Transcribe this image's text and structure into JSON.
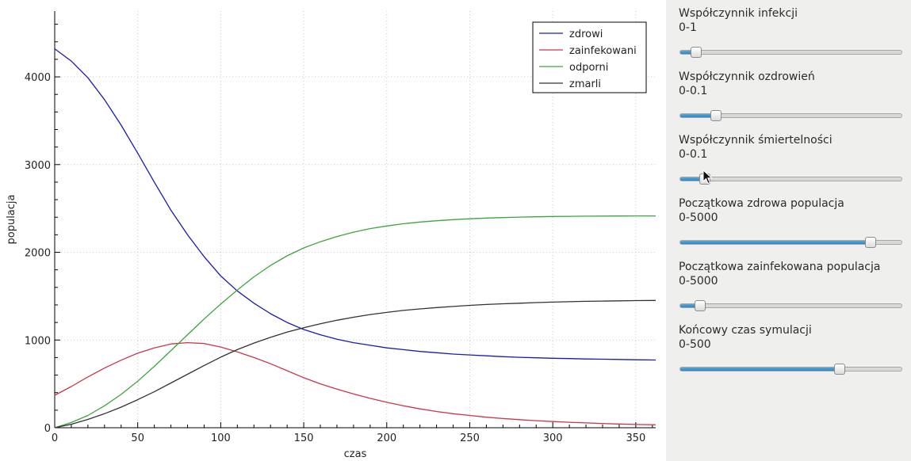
{
  "chart_data": {
    "type": "line",
    "xlabel": "czas",
    "ylabel": "populacja",
    "xlim": [
      0,
      362
    ],
    "ylim": [
      0,
      4750
    ],
    "xticks": [
      0,
      50,
      100,
      150,
      200,
      250,
      300,
      350
    ],
    "yticks": [
      0,
      1000,
      2000,
      3000,
      4000
    ],
    "grid": true,
    "legend_position": "top-right",
    "x": [
      0,
      10,
      20,
      30,
      40,
      50,
      60,
      70,
      80,
      90,
      100,
      110,
      120,
      130,
      140,
      150,
      160,
      170,
      180,
      190,
      200,
      210,
      220,
      230,
      240,
      250,
      260,
      270,
      280,
      290,
      300,
      310,
      320,
      330,
      340,
      350,
      362
    ],
    "series": [
      {
        "name": "zdrowi",
        "color": "#1a1ab4",
        "values": [
          4320,
          4180,
          3990,
          3740,
          3450,
          3130,
          2800,
          2480,
          2200,
          1950,
          1730,
          1560,
          1420,
          1300,
          1200,
          1120,
          1060,
          1010,
          970,
          940,
          910,
          890,
          870,
          855,
          840,
          830,
          820,
          810,
          803,
          797,
          792,
          788,
          784,
          781,
          778,
          775,
          772
        ]
      },
      {
        "name": "zainfekowani",
        "color": "#c8374b",
        "values": [
          370,
          470,
          580,
          680,
          770,
          850,
          910,
          955,
          970,
          960,
          920,
          865,
          800,
          730,
          650,
          570,
          500,
          440,
          385,
          335,
          290,
          250,
          215,
          185,
          160,
          140,
          120,
          105,
          92,
          80,
          70,
          62,
          55,
          48,
          42,
          37,
          33
        ]
      },
      {
        "name": "odporni",
        "color": "#3ea43e",
        "values": [
          0,
          60,
          140,
          250,
          380,
          530,
          700,
          880,
          1060,
          1240,
          1410,
          1570,
          1720,
          1850,
          1960,
          2050,
          2120,
          2180,
          2230,
          2270,
          2300,
          2325,
          2345,
          2360,
          2372,
          2382,
          2390,
          2396,
          2401,
          2405,
          2408,
          2410,
          2412,
          2413,
          2414,
          2415,
          2415
        ]
      },
      {
        "name": "zmarli",
        "color": "#333333",
        "values": [
          0,
          40,
          95,
          160,
          235,
          320,
          410,
          510,
          610,
          710,
          805,
          890,
          965,
          1030,
          1090,
          1140,
          1185,
          1225,
          1260,
          1290,
          1315,
          1337,
          1355,
          1370,
          1383,
          1395,
          1405,
          1413,
          1420,
          1427,
          1432,
          1437,
          1441,
          1444,
          1447,
          1449,
          1451
        ]
      }
    ]
  },
  "sliders": [
    {
      "label": "Współczynnik infekcji",
      "range": "0-1",
      "fraction": 0.07
    },
    {
      "label": "Współczynnik ozdrowień",
      "range": "0-0.1",
      "fraction": 0.16
    },
    {
      "label": "Współczynnik śmiertelności",
      "range": "0-0.1",
      "fraction": 0.11
    },
    {
      "label": "Początkowa zdrowa populacja",
      "range": "0-5000",
      "fraction": 0.86
    },
    {
      "label": "Początkowa zainfekowana populacja",
      "range": "0-5000",
      "fraction": 0.09
    },
    {
      "label": "Końcowy czas symulacji",
      "range": "0-500",
      "fraction": 0.72
    }
  ]
}
